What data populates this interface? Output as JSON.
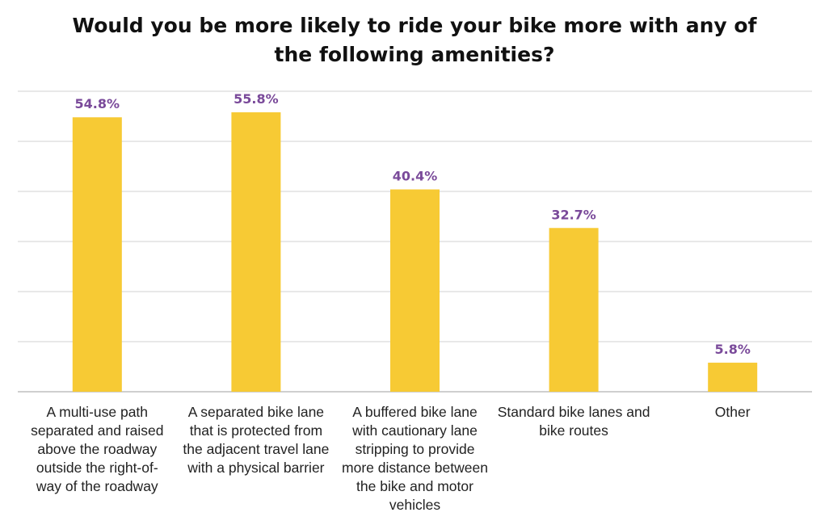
{
  "chart_data": {
    "type": "bar",
    "title_lines": [
      "Would you be more likely to ride your bike more with any of",
      "the following amenities?"
    ],
    "categories": [
      [
        "A multi-use path",
        "separated and raised",
        "above the roadway",
        "outside the right-of-",
        "way of the roadway"
      ],
      [
        "A separated bike lane",
        "that is protected from",
        "the adjacent travel lane",
        "with a physical barrier"
      ],
      [
        "A buffered bike lane",
        "with cautionary lane",
        "stripping to provide",
        "more distance between",
        "the bike and motor",
        "vehicles"
      ],
      [
        "Standard bike lanes and",
        "bike routes"
      ],
      [
        "Other"
      ]
    ],
    "values": [
      54.8,
      55.8,
      40.4,
      32.7,
      5.8
    ],
    "labels": [
      "54.8%",
      "55.8%",
      "40.4%",
      "32.7%",
      "5.8%"
    ],
    "ylim": [
      0,
      60
    ],
    "grid_step": 10,
    "xlabel": "",
    "ylabel": "",
    "colors": {
      "bar": "#F7CA34",
      "label": "#7A4A9A",
      "grid": "#D9D9D9",
      "axis": "#BFBFBF"
    }
  }
}
